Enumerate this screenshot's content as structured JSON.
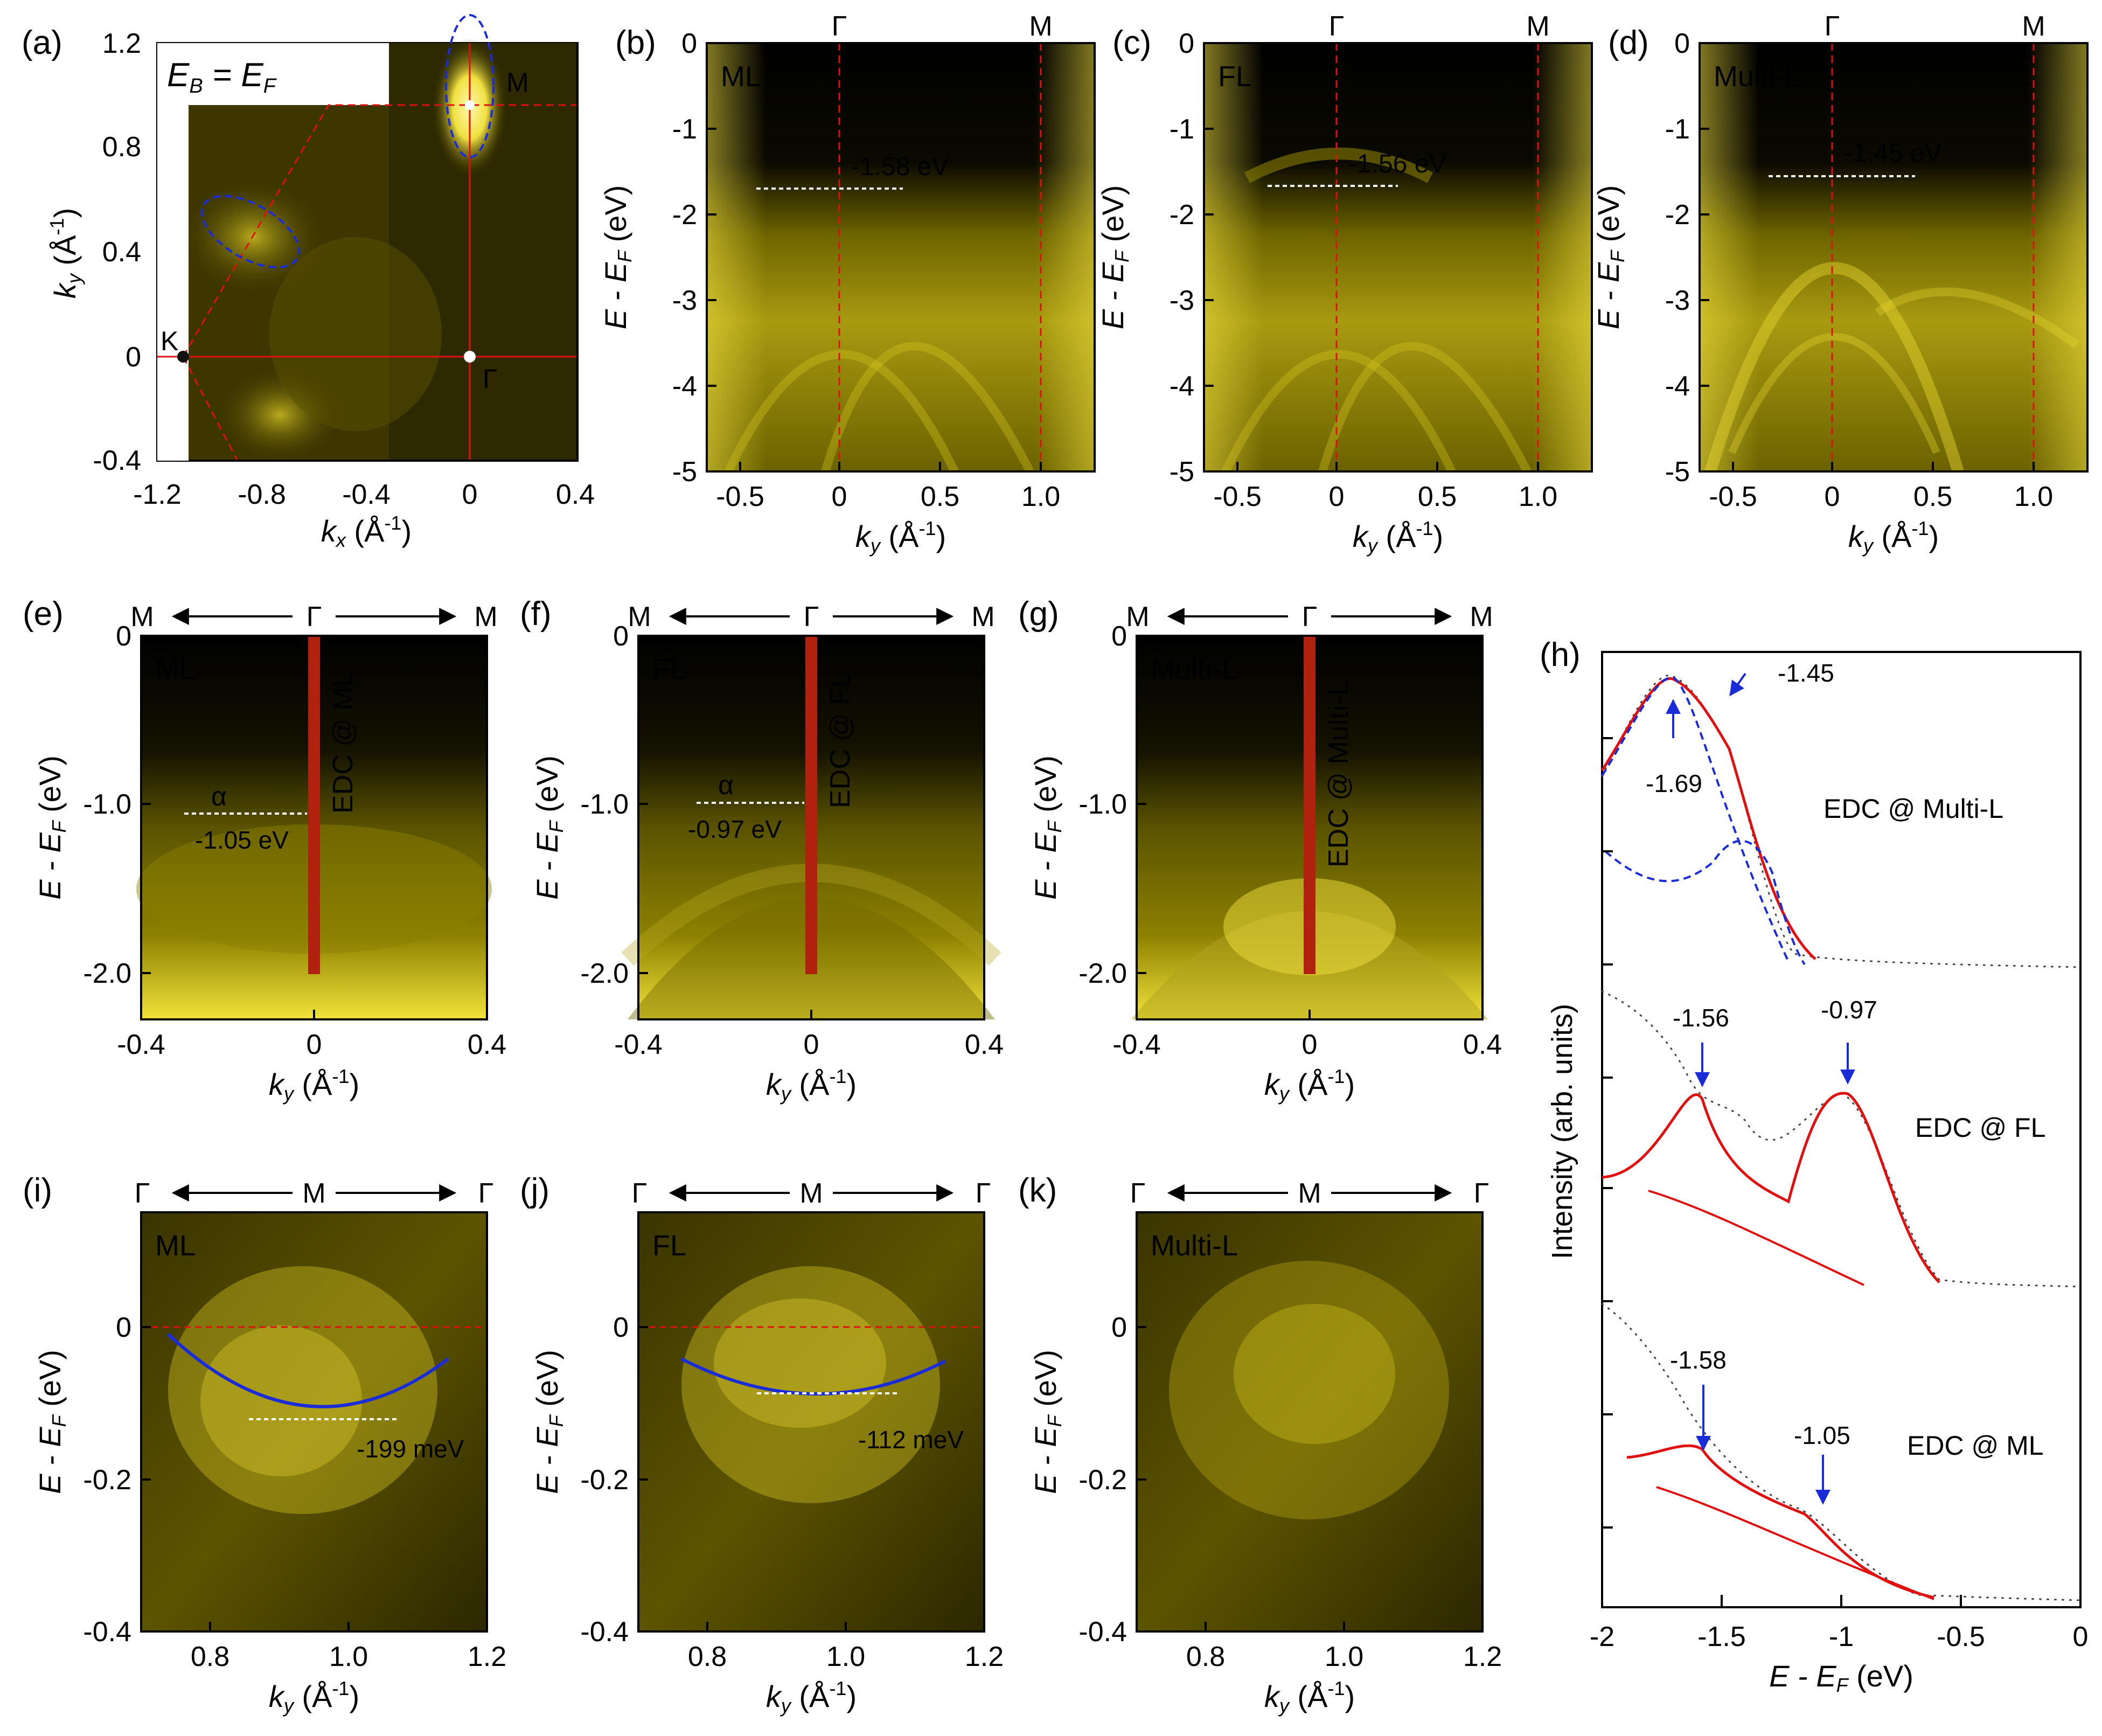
{
  "figure": {
    "panels": {
      "a": {
        "letter": "(a)",
        "title": "E_B = E_F",
        "title_main": "E",
        "title_sub1": "B",
        "title_mid": " = E",
        "title_sub2": "F",
        "points": {
          "M": "M",
          "G": "Γ",
          "K": "K"
        },
        "xlabel_main": "k",
        "xlabel_sub": "x",
        "xlabel_unit": " (Å",
        "xlabel_exp": "-1",
        "xlabel_end": ")",
        "ylabel_main": "k",
        "ylabel_sub": "y",
        "xticks": [
          "-1.2",
          "-0.8",
          "-0.4",
          "0",
          "0.4"
        ],
        "yticks": [
          "1.2",
          "0.8",
          "0.4",
          "0",
          "-0.4"
        ]
      },
      "b": {
        "letter": "(b)",
        "tag": "ML",
        "marker": "-1.58 eV",
        "top": [
          "Γ",
          "M"
        ]
      },
      "c": {
        "letter": "(c)",
        "tag": "FL",
        "marker": "-1.56 eV",
        "top": [
          "Γ",
          "M"
        ]
      },
      "d": {
        "letter": "(d)",
        "tag": "Multi-L",
        "marker": "-1.45 eV",
        "top": [
          "Γ",
          "M"
        ]
      },
      "bcd_xticks": [
        "-0.5",
        "0",
        "0.5",
        "1.0"
      ],
      "bcd_yticks": [
        "0",
        "-1",
        "-2",
        "-3",
        "-4",
        "-5"
      ],
      "e": {
        "letter": "(e)",
        "tag": "ML",
        "edc": "EDC @ ML",
        "alpha": "α",
        "marker": "-1.05 eV"
      },
      "f": {
        "letter": "(f)",
        "tag": "FL",
        "edc": "EDC @ FL",
        "alpha": "α",
        "marker": "-0.97 eV"
      },
      "g": {
        "letter": "(g)",
        "tag": "Multi-L",
        "edc": "EDC @ Multi-L"
      },
      "efg_top": [
        "M",
        "Γ",
        "M"
      ],
      "efg_xticks": [
        "-0.4",
        "0",
        "0.4"
      ],
      "efg_yticks": [
        "0",
        "-1.0",
        "-2.0"
      ],
      "i": {
        "letter": "(i)",
        "tag": "ML",
        "marker": "-199 meV"
      },
      "j": {
        "letter": "(j)",
        "tag": "FL",
        "marker": "-112 meV"
      },
      "k": {
        "letter": "(k)",
        "tag": "Multi-L"
      },
      "ijk_top": [
        "Γ",
        "M",
        "Γ"
      ],
      "ijk_xticks": [
        "0.8",
        "1.0",
        "1.2"
      ],
      "ijk_yticks": [
        "0",
        "-0.2",
        "-0.4"
      ],
      "h": {
        "letter": "(h)",
        "ylabel": "Intensity (arb. units)",
        "xticks": [
          "-2",
          "-1.5",
          "-1",
          "-0.5",
          "0"
        ],
        "curves": [
          "EDC @ Multi-L",
          "EDC @ FL",
          "EDC @ ML"
        ],
        "peaks": [
          "-1.69",
          "-1.45",
          "-1.56",
          "-0.97",
          "-1.58",
          "-1.05"
        ]
      },
      "ky_main": "k",
      "ky_sub": "y",
      "unit_open": " (Å",
      "unit_exp": "-1",
      "unit_close": ")",
      "e_main": "E",
      "e_mid": " - E",
      "e_sub": "F",
      "e_unit": " (eV)"
    }
  },
  "chart_data": [
    {
      "type": "heatmap",
      "title": "E_B = E_F",
      "xlabel": "k_x (Å^-1)",
      "ylabel": "k_y (Å^-1)",
      "xlim": [
        -1.2,
        0.4
      ],
      "ylim": [
        -0.4,
        1.2
      ],
      "points": [
        {
          "name": "M",
          "x": 0,
          "y": 0.95
        },
        {
          "name": "Γ",
          "x": 0,
          "y": 0
        },
        {
          "name": "K",
          "x": -1.1,
          "y": 0
        }
      ]
    },
    {
      "type": "heatmap",
      "name": "ML",
      "xlabel": "k_y (Å^-1)",
      "ylabel": "E - E_F (eV)",
      "xlim": [
        -0.62,
        1.22
      ],
      "ylim": [
        -5,
        0
      ],
      "marker_eV": -1.58
    },
    {
      "type": "heatmap",
      "name": "FL",
      "xlabel": "k_y (Å^-1)",
      "ylabel": "E - E_F (eV)",
      "xlim": [
        -0.62,
        1.22
      ],
      "ylim": [
        -5,
        0
      ],
      "marker_eV": -1.56
    },
    {
      "type": "heatmap",
      "name": "Multi-L",
      "xlabel": "k_y (Å^-1)",
      "ylabel": "E - E_F (eV)",
      "xlim": [
        -0.62,
        1.22
      ],
      "ylim": [
        -5,
        0
      ],
      "marker_eV": -1.45
    },
    {
      "type": "heatmap",
      "name": "ML",
      "xlabel": "k_y (Å^-1)",
      "ylabel": "E - E_F (eV)",
      "xlim": [
        -0.4,
        0.4
      ],
      "ylim": [
        -2.5,
        0
      ],
      "marker_eV": -1.05
    },
    {
      "type": "heatmap",
      "name": "FL",
      "xlabel": "k_y (Å^-1)",
      "ylabel": "E - E_F (eV)",
      "xlim": [
        -0.4,
        0.4
      ],
      "ylim": [
        -2.5,
        0
      ],
      "marker_eV": -0.97
    },
    {
      "type": "heatmap",
      "name": "Multi-L",
      "xlabel": "k_y (Å^-1)",
      "ylabel": "E - E_F (eV)",
      "xlim": [
        -0.4,
        0.4
      ],
      "ylim": [
        -2.5,
        0
      ]
    },
    {
      "type": "line",
      "xlabel": "E - E_F (eV)",
      "ylabel": "Intensity (arb. units)",
      "xlim": [
        -2,
        0
      ],
      "series": [
        {
          "name": "EDC @ Multi-L",
          "peaks": [
            -1.69,
            -1.45
          ]
        },
        {
          "name": "EDC @ FL",
          "peaks": [
            -1.56,
            -0.97
          ]
        },
        {
          "name": "EDC @ ML",
          "peaks": [
            -1.58,
            -1.05
          ]
        }
      ]
    },
    {
      "type": "heatmap",
      "name": "ML",
      "xlabel": "k_y (Å^-1)",
      "ylabel": "E - E_F (eV)",
      "xlim": [
        0.7,
        1.2
      ],
      "ylim": [
        -0.4,
        0.15
      ],
      "band_bottom_meV": -199
    },
    {
      "type": "heatmap",
      "name": "FL",
      "xlabel": "k_y (Å^-1)",
      "ylabel": "E - E_F (eV)",
      "xlim": [
        0.7,
        1.2
      ],
      "ylim": [
        -0.4,
        0.15
      ],
      "band_bottom_meV": -112
    },
    {
      "type": "heatmap",
      "name": "Multi-L",
      "xlabel": "k_y (Å^-1)",
      "ylabel": "E - E_F (eV)",
      "xlim": [
        0.7,
        1.2
      ],
      "ylim": [
        -0.4,
        0.15
      ]
    }
  ]
}
